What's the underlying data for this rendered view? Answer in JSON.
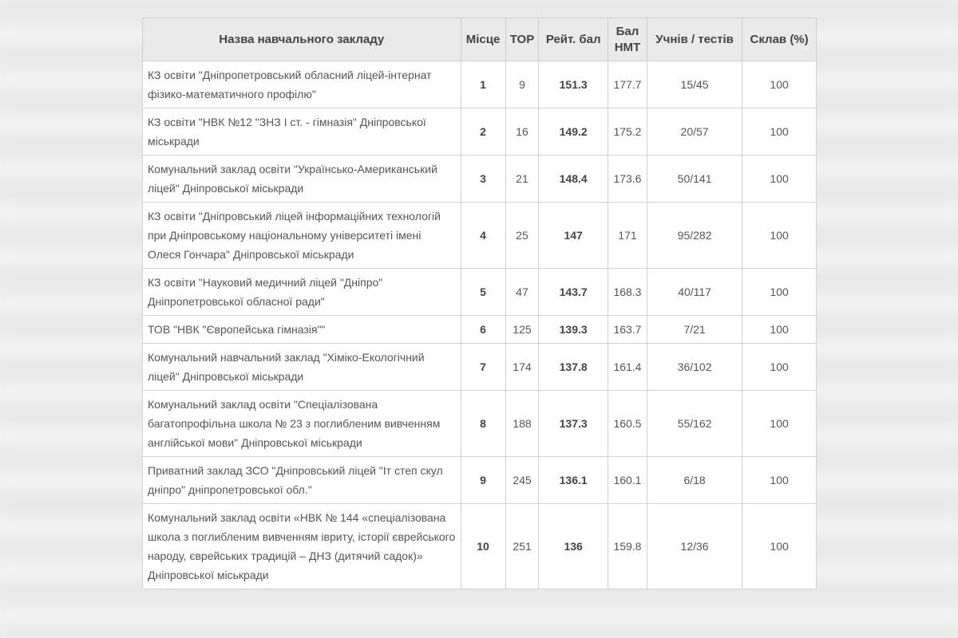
{
  "table": {
    "headers": [
      "Назва навчального закладу",
      "Місце",
      "ТОР",
      "Рейт. бал",
      "Бал НМТ",
      "Учнів / тестів",
      "Склав (%)"
    ],
    "rows": [
      {
        "name": "КЗ освіти \"Дніпропетровський обласний ліцей-інтернат фізико-математичного профілю\"",
        "place": "1",
        "top": "9",
        "rating": "151.3",
        "nmt": "177.7",
        "students": "15/45",
        "passed": "100"
      },
      {
        "name": "КЗ освіти \"НВК №12 \"ЗНЗ І ст. - гімназія\" Дніпровської міськради",
        "place": "2",
        "top": "16",
        "rating": "149.2",
        "nmt": "175.2",
        "students": "20/57",
        "passed": "100"
      },
      {
        "name": "Комунальний заклад освіти \"Українсько-Американський ліцей\" Дніпровської міськради",
        "place": "3",
        "top": "21",
        "rating": "148.4",
        "nmt": "173.6",
        "students": "50/141",
        "passed": "100"
      },
      {
        "name": "КЗ освіти \"Дніпровський ліцей інформаційних технологій при Дніпровському національному університеті імені Олеся Гончара\" Дніпровської міськради",
        "place": "4",
        "top": "25",
        "rating": "147",
        "nmt": "171",
        "students": "95/282",
        "passed": "100"
      },
      {
        "name": "КЗ освіти \"Науковий медичний ліцей \"Дніпро\" Дніпропетровської обласної ради\"",
        "place": "5",
        "top": "47",
        "rating": "143.7",
        "nmt": "168.3",
        "students": "40/117",
        "passed": "100"
      },
      {
        "name": "ТОВ \"НВК \"Європейська гімназія\"\"",
        "place": "6",
        "top": "125",
        "rating": "139.3",
        "nmt": "163.7",
        "students": "7/21",
        "passed": "100"
      },
      {
        "name": "Комунальний навчальний заклад \"Хіміко-Екологічний ліцей\" Дніпровської міськради",
        "place": "7",
        "top": "174",
        "rating": "137.8",
        "nmt": "161.4",
        "students": "36/102",
        "passed": "100"
      },
      {
        "name": "Комунальний заклад освіти \"Спеціалізована багатопрофільна школа № 23 з поглибленим вивченням англійської мови\" Дніпровської міськради",
        "place": "8",
        "top": "188",
        "rating": "137.3",
        "nmt": "160.5",
        "students": "55/162",
        "passed": "100"
      },
      {
        "name": "Приватний заклад ЗСО \"Дніпровський ліцей \"Іт степ скул дніпро\" дніпропетровської обл.\"",
        "place": "9",
        "top": "245",
        "rating": "136.1",
        "nmt": "160.1",
        "students": "6/18",
        "passed": "100"
      },
      {
        "name": "Комунальний заклад освіти «НВК № 144 «спеціалізована школа з поглибленим вивченням івриту, історії єврейського народу, єврейських традицій – ДНЗ (дитячий садок)» Дніпровської міськради",
        "place": "10",
        "top": "251",
        "rating": "136",
        "nmt": "159.8",
        "students": "12/36",
        "passed": "100"
      }
    ]
  }
}
